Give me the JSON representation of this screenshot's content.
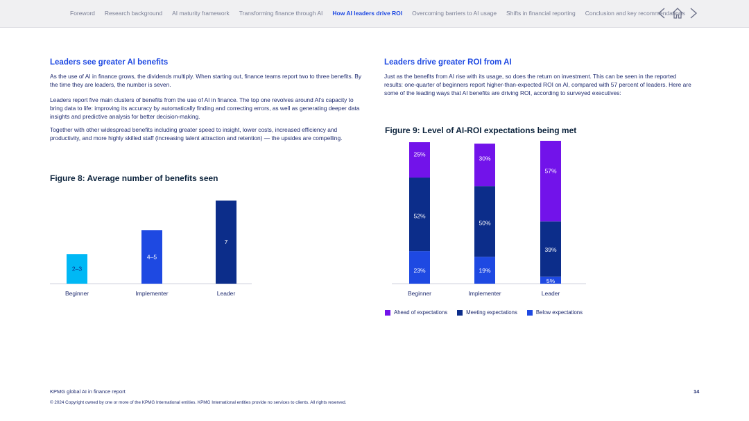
{
  "nav": {
    "items": [
      {
        "label": "Foreword",
        "active": false
      },
      {
        "label": "Research background",
        "active": false
      },
      {
        "label": "AI maturity framework",
        "active": false
      },
      {
        "label": "Transforming finance through AI",
        "active": false
      },
      {
        "label": "How AI leaders drive ROI",
        "active": true
      },
      {
        "label": "Overcoming barriers to AI usage",
        "active": false
      },
      {
        "label": "Shifts in financial reporting",
        "active": false
      },
      {
        "label": "Conclusion and key recommendations",
        "active": false
      }
    ],
    "icons": [
      "chevron-left-icon",
      "home-icon",
      "chevron-right-icon"
    ]
  },
  "left": {
    "heading": "Leaders see greater AI benefits",
    "p1": "As the use of AI in finance grows, the dividends multiply. When starting out, finance teams report two to three benefits. By the time they are leaders, the number is seven.",
    "p2": "Leaders report five main clusters of benefits from the use of AI in finance. The top one revolves around AI's capacity to bring data to life: improving its accuracy by automatically finding and correcting errors, as well as generating deeper data insights and predictive analysis for better decision-making.",
    "p3": "Together with other widespread benefits including greater speed to insight, lower costs, increased efficiency and productivity, and more highly skilled staff (increasing talent attraction and retention) — the upsides are compelling.",
    "figure_title": "Figure 8: Average number of benefits seen"
  },
  "right": {
    "heading": "Leaders drive greater ROI from AI",
    "p1": "Just as the benefits from AI rise with its usage, so does the return on investment. This can be seen in the reported results: one-quarter of beginners report higher-than-expected ROI on AI, compared with 57 percent of leaders. Here are some of the leading ways that AI benefits are driving ROI, according to surveyed executives:",
    "figure_title": "Figure 9: Level of AI-ROI expectations being met"
  },
  "chart_data": [
    {
      "type": "bar",
      "title": "Figure 8: Average number of benefits seen",
      "categories": [
        "Beginner",
        "Implementer",
        "Leader"
      ],
      "values": [
        2.5,
        4.5,
        7
      ],
      "labels": [
        "2–3",
        "4–5",
        "7"
      ],
      "colors": [
        "#00b8f5",
        "#1e49e2",
        "#0c2d8a"
      ],
      "ylim": [
        0,
        7.6
      ],
      "grid": false
    },
    {
      "type": "bar",
      "stacked": true,
      "title": "Figure 9: Level of AI-ROI expectations being met",
      "categories": [
        "Beginner",
        "Implementer",
        "Leader"
      ],
      "series": [
        {
          "name": "Below expectations",
          "values": [
            23,
            19,
            5
          ],
          "color": "#1e49e2"
        },
        {
          "name": "Meeting expectations",
          "values": [
            52,
            50,
            39
          ],
          "color": "#0c2d8a"
        },
        {
          "name": "Ahead of expectations",
          "values": [
            25,
            30,
            57
          ],
          "color": "#7213ea"
        }
      ],
      "ylim": [
        0,
        101
      ],
      "grid": false,
      "legend_position": "bottom"
    }
  ],
  "footer": {
    "report": "KPMG global AI in finance report",
    "page": "14",
    "copyright": "© 2024 Copyright owned by one or more of the KPMG International entities. KPMG International entities provide no services to clients. All rights reserved."
  }
}
